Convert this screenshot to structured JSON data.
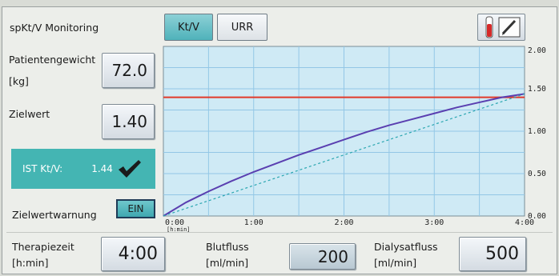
{
  "header": {
    "title": "spKt/V Monitoring",
    "tabs": [
      {
        "label": "Kt/V",
        "active": true
      },
      {
        "label": "URR",
        "active": false
      }
    ],
    "tool_icon": "test-tube-pencil-icon"
  },
  "left_panel": {
    "weight_label_line1": "Patientengewicht",
    "weight_label_line2": "[kg]",
    "weight_value": "72.0",
    "target_label": "Zielwert",
    "target_value": "1.40",
    "ist_label": "IST Kt/V:",
    "ist_value": "1.44",
    "ist_icon": "checkmark-icon",
    "warning_label": "Zielwertwarnung",
    "warning_toggle": "EIN"
  },
  "bottom": {
    "therapy_label_line1": "Therapiezeit",
    "therapy_label_line2": "[h:min]",
    "therapy_value": "4:00",
    "blood_label_line1": "Blutfluss",
    "blood_label_line2": "[ml/min]",
    "blood_value": "200",
    "dialysate_label_line1": "Dialysatfluss",
    "dialysate_label_line2": "[ml/min]",
    "dialysate_value": "500"
  },
  "colors": {
    "plot_bg": "#cfeaf5",
    "grid": "#93c7e6",
    "target_line": "#e23a2a",
    "actual_line": "#5a3fb0",
    "reference_line": "#2aa6b0",
    "accent": "#44b5b3"
  },
  "chart_data": {
    "type": "line",
    "x_ticks": [
      "0:00",
      "1:00",
      "2:00",
      "3:00",
      "4:00"
    ],
    "x_unit": "[h:min]",
    "x_range": [
      0,
      4
    ],
    "y_ticks": [
      "0.00",
      "0.50",
      "1.00",
      "1.50",
      "2.00"
    ],
    "y_range": [
      0,
      2
    ],
    "grid": true,
    "target": 1.4,
    "series": [
      {
        "style": "solid",
        "x": [
          0,
          0.25,
          0.5,
          0.75,
          1.0,
          1.25,
          1.5,
          1.75,
          2.0,
          2.25,
          2.5,
          2.75,
          3.0,
          3.25,
          3.5,
          3.75,
          4.0
        ],
        "values": [
          0,
          0.16,
          0.29,
          0.41,
          0.52,
          0.62,
          0.72,
          0.81,
          0.9,
          0.99,
          1.07,
          1.14,
          1.21,
          1.28,
          1.34,
          1.4,
          1.44
        ]
      },
      {
        "style": "dashed",
        "x": [
          0,
          4.0
        ],
        "values": [
          0,
          1.44
        ]
      }
    ]
  }
}
